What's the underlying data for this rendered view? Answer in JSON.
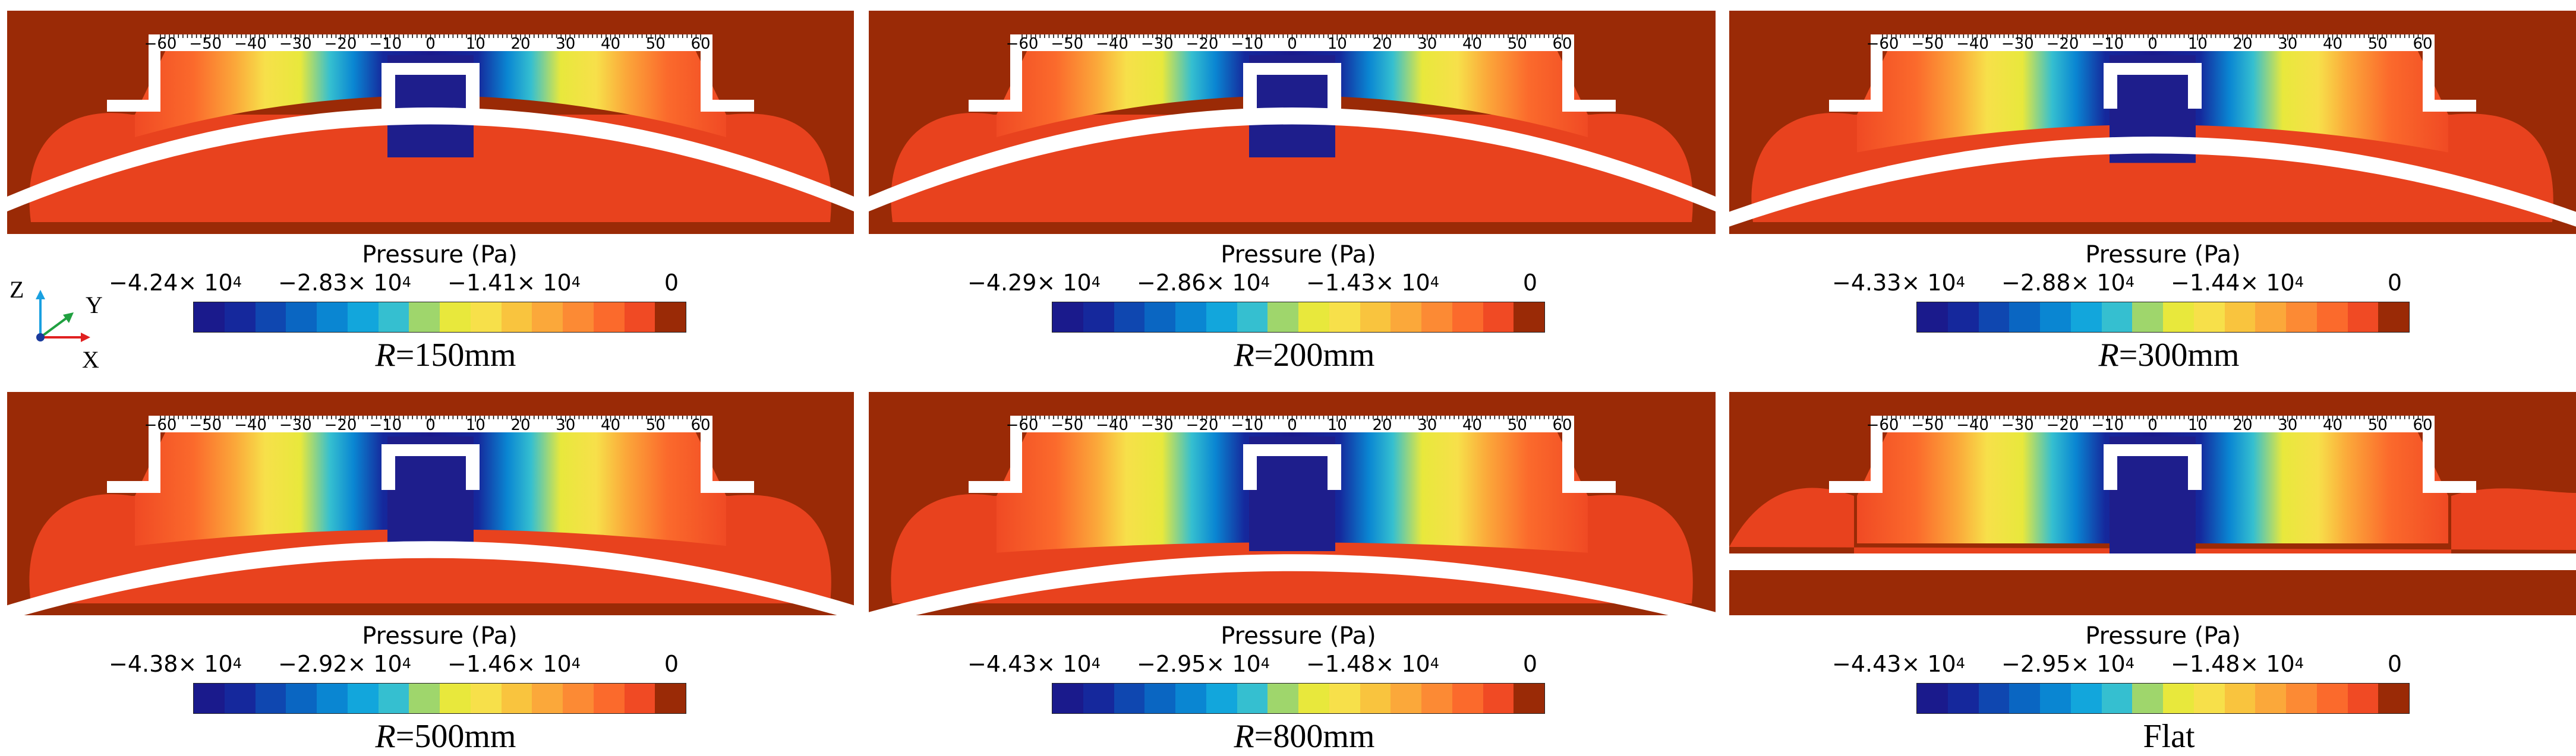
{
  "colormap": [
    "#1a1a8c",
    "#15289c",
    "#0f47b0",
    "#0a66c2",
    "#0a86d2",
    "#12a6dc",
    "#35bfd0",
    "#9fd66c",
    "#e8e83c",
    "#f7e04a",
    "#f9c43e",
    "#fba83a",
    "#fc8a34",
    "#fb6a2c",
    "#f04a24",
    "#9a2a06"
  ],
  "field_colors": {
    "background": "#9a2a06",
    "surround": "#e8421e",
    "center": "#1e1e8c",
    "edge": "#ffffff"
  },
  "scale_ticks": [
    "60",
    "50",
    "40",
    "30",
    "20",
    "10",
    "0",
    "10",
    "20",
    "30",
    "40",
    "50",
    "60"
  ],
  "axes_triad": {
    "z": "Z",
    "y": "Y",
    "x": "X"
  },
  "panels": [
    {
      "legend_title": "Pressure (Pa)",
      "tick_mantissas": [
        "−4.24× 10",
        "−2.83× 10",
        "−1.41× 10",
        "0"
      ],
      "tick_exponents": [
        "4",
        "4",
        "4",
        ""
      ],
      "label_prefix": "R",
      "label_suffix": "=150mm",
      "radius_mm": 150
    },
    {
      "legend_title": "Pressure (Pa)",
      "tick_mantissas": [
        "−4.29× 10",
        "−2.86× 10",
        "−1.43× 10",
        "0"
      ],
      "tick_exponents": [
        "4",
        "4",
        "4",
        ""
      ],
      "label_prefix": "R",
      "label_suffix": "=200mm",
      "radius_mm": 200
    },
    {
      "legend_title": "Pressure (Pa)",
      "tick_mantissas": [
        "−4.33× 10",
        "−2.88× 10",
        "−1.44× 10",
        "0"
      ],
      "tick_exponents": [
        "4",
        "4",
        "4",
        ""
      ],
      "label_prefix": "R",
      "label_suffix": "=300mm",
      "radius_mm": 300
    },
    {
      "legend_title": "Pressure (Pa)",
      "tick_mantissas": [
        "−4.38× 10",
        "−2.92× 10",
        "−1.46× 10",
        "0"
      ],
      "tick_exponents": [
        "4",
        "4",
        "4",
        ""
      ],
      "label_prefix": "R",
      "label_suffix": "=500mm",
      "radius_mm": 500
    },
    {
      "legend_title": "Pressure (Pa)",
      "tick_mantissas": [
        "−4.43× 10",
        "−2.95× 10",
        "−1.48× 10",
        "0"
      ],
      "tick_exponents": [
        "4",
        "4",
        "4",
        ""
      ],
      "label_prefix": "R",
      "label_suffix": "=800mm",
      "radius_mm": 800
    },
    {
      "legend_title": "Pressure (Pa)",
      "tick_mantissas": [
        "−4.43× 10",
        "−2.95× 10",
        "−1.48× 10",
        "0"
      ],
      "tick_exponents": [
        "4",
        "4",
        "4",
        ""
      ],
      "label_prefix": "",
      "label_suffix": "Flat",
      "radius_mm": null
    }
  ]
}
